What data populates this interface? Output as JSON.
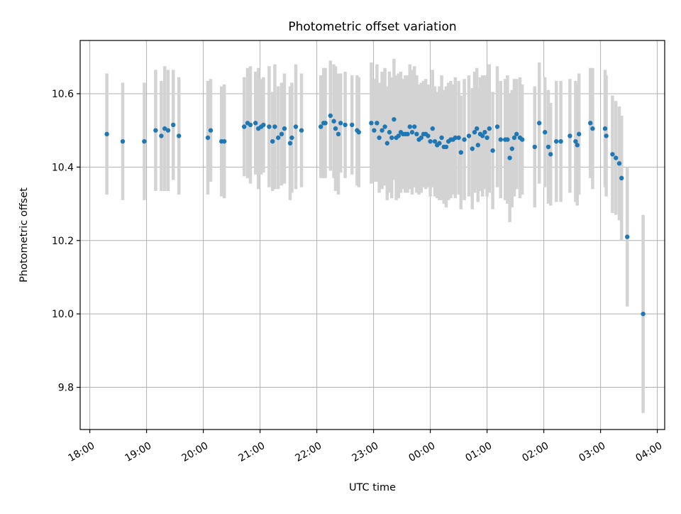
{
  "chart_data": {
    "type": "scatter",
    "title": "Photometric offset variation",
    "xlabel": "UTC time",
    "ylabel": "Photometric offset",
    "x_unit": "hours since 18:00 UTC",
    "xlim": [
      -0.17,
      10.13
    ],
    "ylim": [
      9.685,
      10.745
    ],
    "grid": true,
    "x_ticks": [
      {
        "value": 0,
        "label": "18:00"
      },
      {
        "value": 1,
        "label": "19:00"
      },
      {
        "value": 2,
        "label": "20:00"
      },
      {
        "value": 3,
        "label": "21:00"
      },
      {
        "value": 4,
        "label": "22:00"
      },
      {
        "value": 5,
        "label": "23:00"
      },
      {
        "value": 6,
        "label": "00:00"
      },
      {
        "value": 7,
        "label": "01:00"
      },
      {
        "value": 8,
        "label": "02:00"
      },
      {
        "value": 9,
        "label": "03:00"
      },
      {
        "value": 10,
        "label": "04:00"
      }
    ],
    "y_ticks": [
      {
        "value": 9.8,
        "label": "9.8"
      },
      {
        "value": 10.0,
        "label": "10.0"
      },
      {
        "value": 10.2,
        "label": "10.2"
      },
      {
        "value": 10.4,
        "label": "10.4"
      },
      {
        "value": 10.6,
        "label": "10.6"
      }
    ],
    "colors": {
      "point": "#1f77b4",
      "errorbar": "#d3d3d3"
    },
    "series": [
      {
        "name": "offset",
        "points": [
          [
            0.3,
            10.49,
            0.165
          ],
          [
            0.58,
            10.47,
            0.16
          ],
          [
            0.96,
            10.47,
            0.16
          ],
          [
            1.16,
            10.5,
            0.165
          ],
          [
            1.26,
            10.485,
            0.15
          ],
          [
            1.32,
            10.505,
            0.17
          ],
          [
            1.38,
            10.5,
            0.165
          ],
          [
            1.47,
            10.515,
            0.15
          ],
          [
            1.57,
            10.485,
            0.16
          ],
          [
            2.08,
            10.48,
            0.155
          ],
          [
            2.13,
            10.5,
            0.14
          ],
          [
            2.32,
            10.47,
            0.15
          ],
          [
            2.37,
            10.47,
            0.155
          ],
          [
            2.72,
            10.51,
            0.135
          ],
          [
            2.78,
            10.52,
            0.15
          ],
          [
            2.83,
            10.515,
            0.16
          ],
          [
            2.92,
            10.52,
            0.14
          ],
          [
            2.97,
            10.505,
            0.165
          ],
          [
            3.02,
            10.51,
            0.13
          ],
          [
            3.06,
            10.515,
            0.13
          ],
          [
            3.16,
            10.51,
            0.165
          ],
          [
            3.22,
            10.47,
            0.135
          ],
          [
            3.26,
            10.51,
            0.17
          ],
          [
            3.32,
            10.48,
            0.14
          ],
          [
            3.38,
            10.49,
            0.14
          ],
          [
            3.43,
            10.505,
            0.15
          ],
          [
            3.53,
            10.465,
            0.155
          ],
          [
            3.56,
            10.48,
            0.15
          ],
          [
            3.63,
            10.51,
            0.17
          ],
          [
            3.73,
            10.5,
            0.155
          ],
          [
            4.07,
            10.51,
            0.14
          ],
          [
            4.12,
            10.52,
            0.15
          ],
          [
            4.15,
            10.52,
            0.15
          ],
          [
            4.24,
            10.54,
            0.15
          ],
          [
            4.3,
            10.525,
            0.155
          ],
          [
            4.33,
            10.505,
            0.17
          ],
          [
            4.38,
            10.49,
            0.165
          ],
          [
            4.42,
            10.52,
            0.135
          ],
          [
            4.5,
            10.515,
            0.145
          ],
          [
            4.62,
            10.515,
            0.135
          ],
          [
            4.71,
            10.5,
            0.15
          ],
          [
            4.74,
            10.495,
            0.15
          ],
          [
            4.96,
            10.52,
            0.165
          ],
          [
            5.01,
            10.5,
            0.14
          ],
          [
            5.06,
            10.52,
            0.16
          ],
          [
            5.1,
            10.48,
            0.15
          ],
          [
            5.15,
            10.5,
            0.16
          ],
          [
            5.2,
            10.51,
            0.16
          ],
          [
            5.24,
            10.465,
            0.155
          ],
          [
            5.28,
            10.495,
            0.165
          ],
          [
            5.32,
            10.48,
            0.165
          ],
          [
            5.36,
            10.53,
            0.165
          ],
          [
            5.4,
            10.48,
            0.17
          ],
          [
            5.44,
            10.485,
            0.17
          ],
          [
            5.48,
            10.495,
            0.165
          ],
          [
            5.52,
            10.49,
            0.15
          ],
          [
            5.56,
            10.49,
            0.16
          ],
          [
            5.6,
            10.49,
            0.16
          ],
          [
            5.64,
            10.51,
            0.17
          ],
          [
            5.68,
            10.495,
            0.17
          ],
          [
            5.72,
            10.51,
            0.165
          ],
          [
            5.76,
            10.49,
            0.16
          ],
          [
            5.8,
            10.475,
            0.15
          ],
          [
            5.84,
            10.48,
            0.15
          ],
          [
            5.88,
            10.49,
            0.145
          ],
          [
            5.92,
            10.49,
            0.15
          ],
          [
            5.96,
            10.485,
            0.14
          ],
          [
            6.0,
            10.47,
            0.15
          ],
          [
            6.04,
            10.505,
            0.16
          ],
          [
            6.08,
            10.47,
            0.15
          ],
          [
            6.12,
            10.46,
            0.145
          ],
          [
            6.16,
            10.465,
            0.155
          ],
          [
            6.2,
            10.48,
            0.17
          ],
          [
            6.24,
            10.455,
            0.155
          ],
          [
            6.28,
            10.455,
            0.165
          ],
          [
            6.32,
            10.47,
            0.16
          ],
          [
            6.36,
            10.475,
            0.16
          ],
          [
            6.4,
            10.475,
            0.15
          ],
          [
            6.44,
            10.48,
            0.165
          ],
          [
            6.5,
            10.48,
            0.155
          ],
          [
            6.54,
            10.44,
            0.155
          ],
          [
            6.6,
            10.475,
            0.165
          ],
          [
            6.68,
            10.485,
            0.165
          ],
          [
            6.74,
            10.45,
            0.165
          ],
          [
            6.78,
            10.495,
            0.165
          ],
          [
            6.82,
            10.505,
            0.165
          ],
          [
            6.84,
            10.46,
            0.155
          ],
          [
            6.88,
            10.49,
            0.155
          ],
          [
            6.92,
            10.485,
            0.165
          ],
          [
            6.96,
            10.495,
            0.155
          ],
          [
            7.0,
            10.48,
            0.16
          ],
          [
            7.04,
            10.505,
            0.175
          ],
          [
            7.1,
            10.445,
            0.16
          ],
          [
            7.18,
            10.51,
            0.165
          ],
          [
            7.24,
            10.475,
            0.16
          ],
          [
            7.32,
            10.475,
            0.165
          ],
          [
            7.36,
            10.475,
            0.175
          ],
          [
            7.4,
            10.425,
            0.175
          ],
          [
            7.44,
            10.45,
            0.16
          ],
          [
            7.48,
            10.48,
            0.16
          ],
          [
            7.52,
            10.49,
            0.15
          ],
          [
            7.58,
            10.48,
            0.165
          ],
          [
            7.62,
            10.475,
            0.15
          ],
          [
            7.84,
            10.455,
            0.165
          ],
          [
            7.92,
            10.52,
            0.165
          ],
          [
            8.02,
            10.495,
            0.15
          ],
          [
            8.08,
            10.455,
            0.155
          ],
          [
            8.12,
            10.435,
            0.14
          ],
          [
            8.22,
            10.47,
            0.165
          ],
          [
            8.3,
            10.47,
            0.165
          ],
          [
            8.46,
            10.485,
            0.155
          ],
          [
            8.56,
            10.47,
            0.165
          ],
          [
            8.59,
            10.46,
            0.165
          ],
          [
            8.62,
            10.49,
            0.165
          ],
          [
            8.82,
            10.52,
            0.15
          ],
          [
            8.86,
            10.505,
            0.165
          ],
          [
            9.08,
            10.505,
            0.16
          ],
          [
            9.1,
            10.485,
            0.165
          ],
          [
            9.21,
            10.435,
            0.16
          ],
          [
            9.27,
            10.425,
            0.155
          ],
          [
            9.33,
            10.41,
            0.155
          ],
          [
            9.37,
            10.37,
            0.17
          ],
          [
            9.47,
            10.21,
            0.19
          ],
          [
            9.75,
            10.0,
            0.27
          ]
        ]
      }
    ]
  }
}
